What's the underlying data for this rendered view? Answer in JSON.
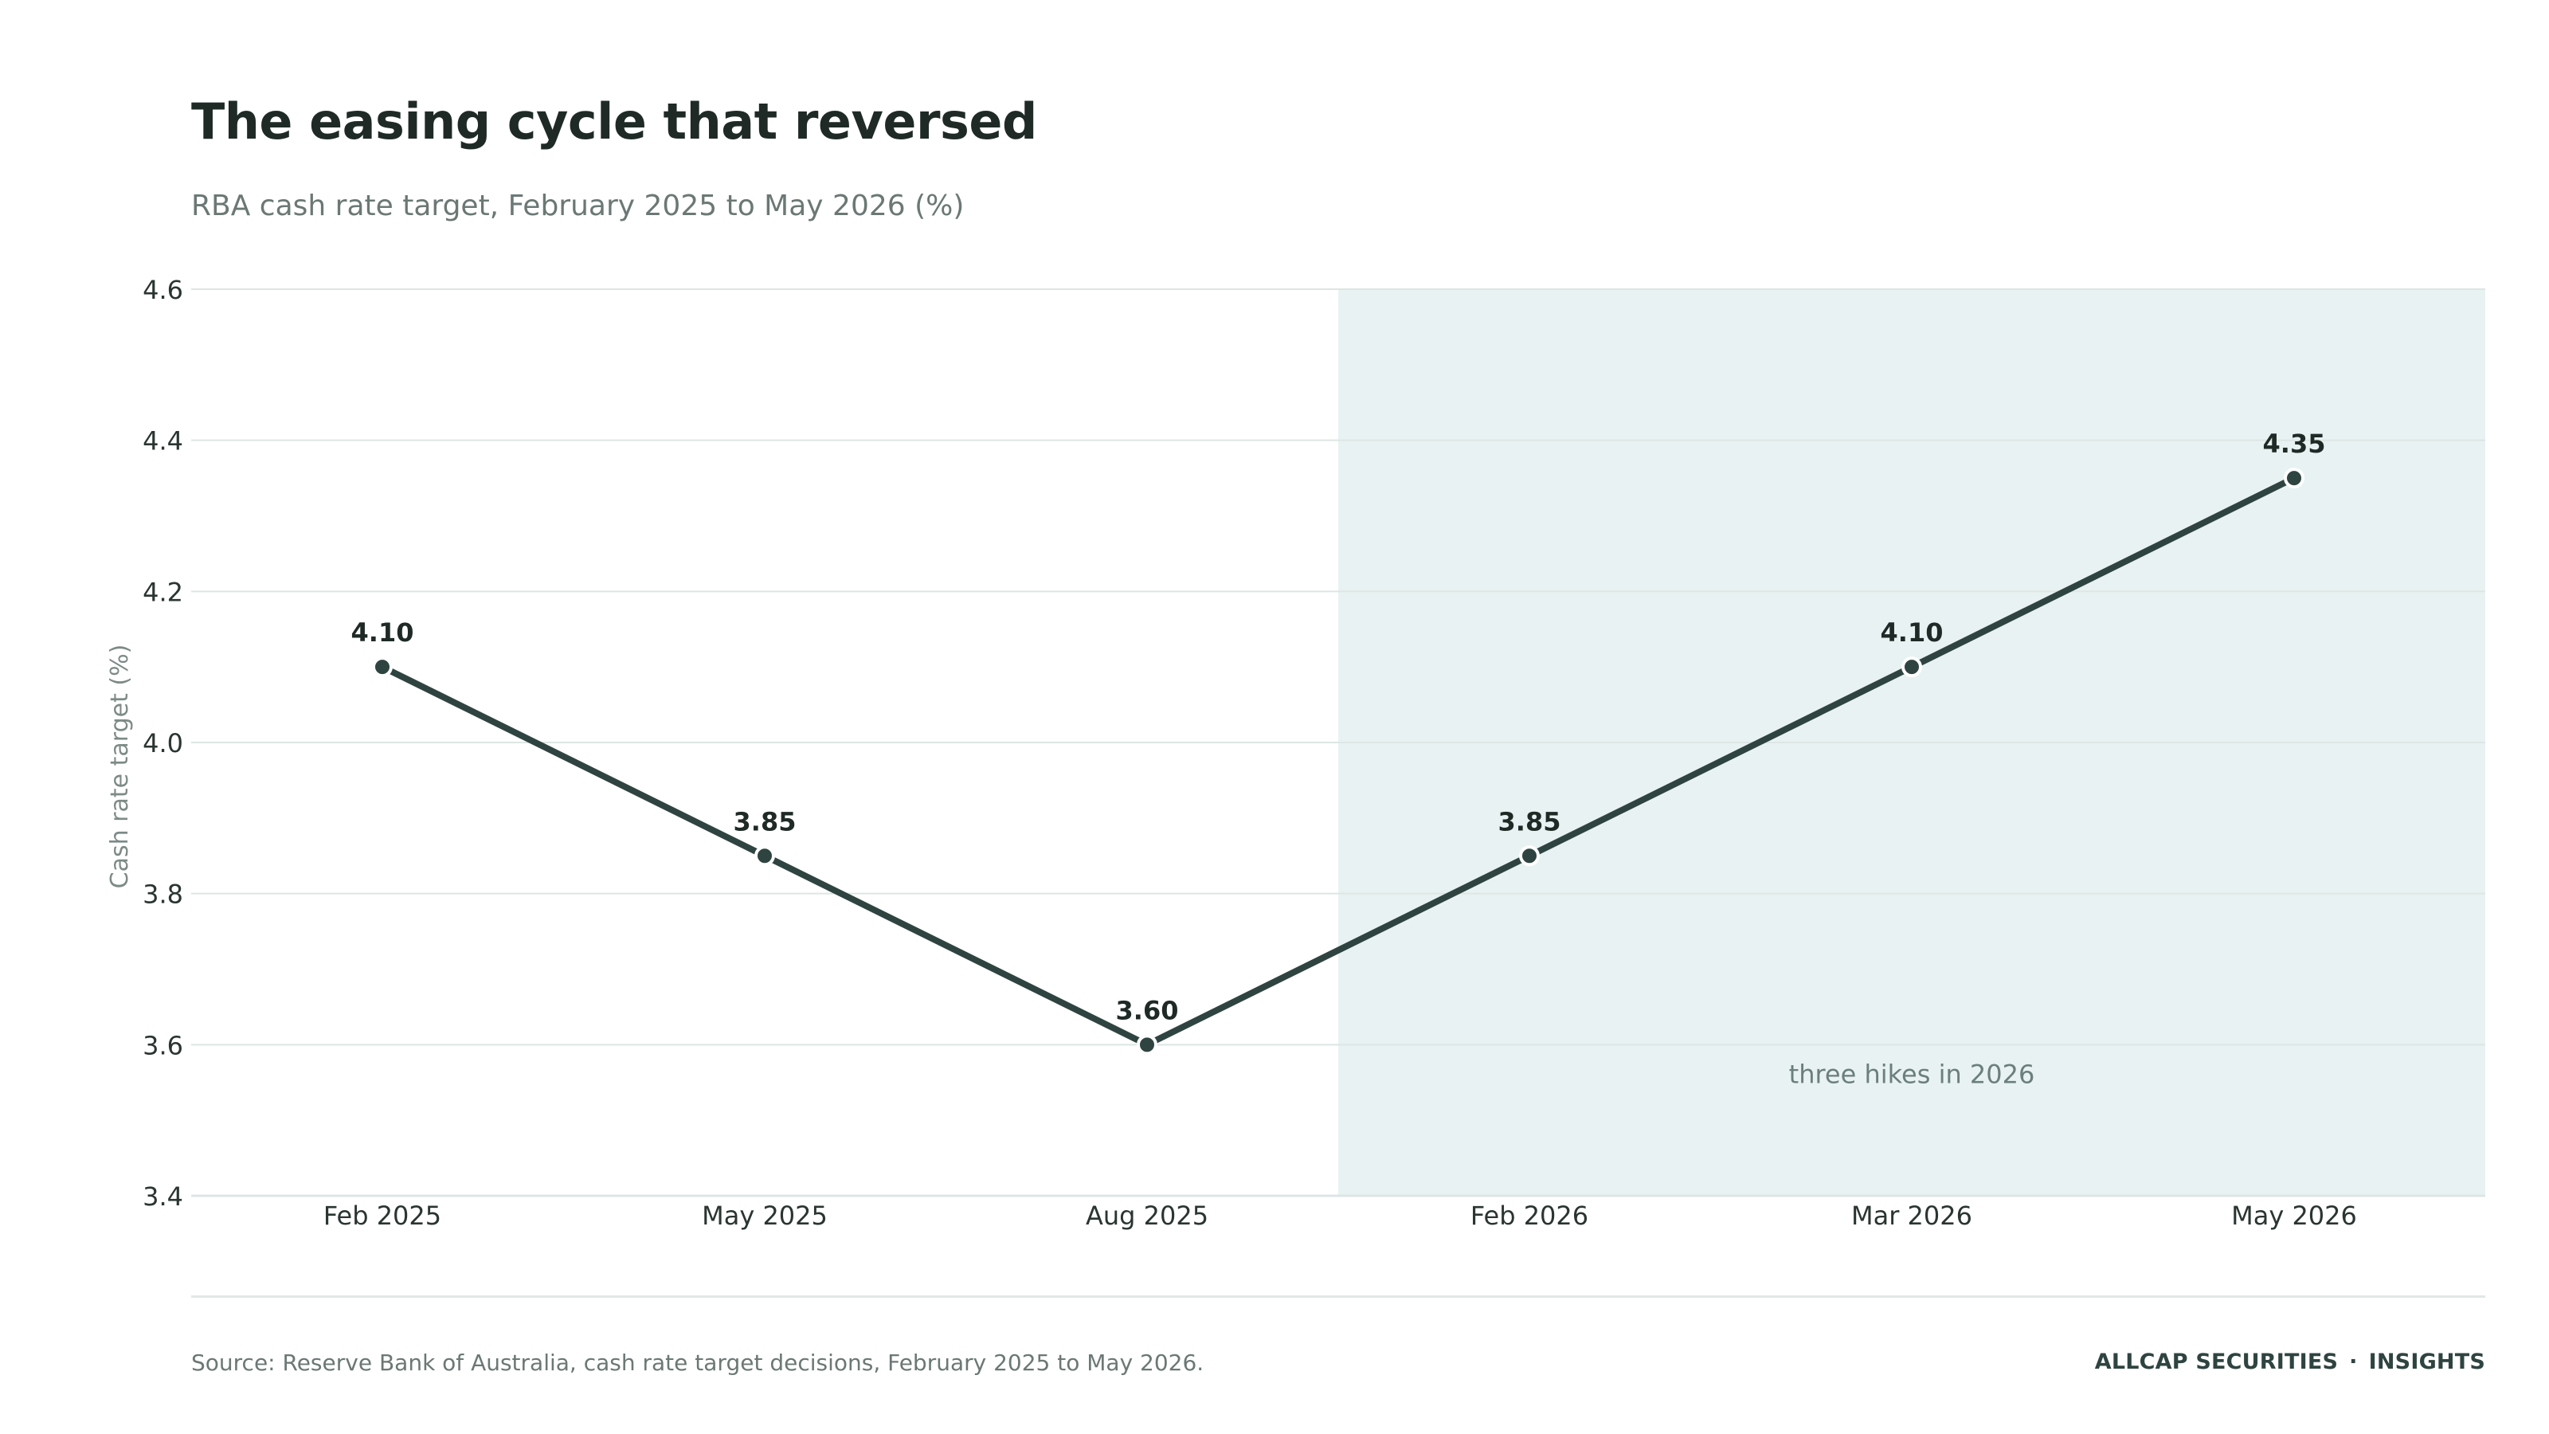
{
  "header": {
    "title": "The easing cycle that reversed",
    "subtitle": "RBA cash rate target, February 2025 to May 2026 (%)"
  },
  "chart_data": {
    "type": "line",
    "categories": [
      "Feb 2025",
      "May 2025",
      "Aug 2025",
      "Feb 2026",
      "Mar 2026",
      "May 2026"
    ],
    "series": [
      {
        "values": [
          4.1,
          3.85,
          3.6,
          3.85,
          4.1,
          4.35
        ],
        "labels": [
          "4.10",
          "3.85",
          "3.60",
          "3.85",
          "4.10",
          "4.35"
        ]
      }
    ],
    "ylabel": "Cash rate target (%)",
    "xlabel": "",
    "ylim": [
      3.4,
      4.6
    ],
    "yticks": [
      "3.4",
      "3.6",
      "3.8",
      "4.0",
      "4.2",
      "4.4",
      "4.6"
    ],
    "grid": true,
    "highlight_band": {
      "from_after_category": "Aug 2025",
      "to_category": "May 2026",
      "label": "three hikes in 2026"
    }
  },
  "colors": {
    "line": "#2f4440",
    "band": "#e8f2f2",
    "grid": "#dde6e4",
    "tick_text": "#2a3532",
    "axis_label": "#7d8a87",
    "band_label": "#6b7f7c"
  },
  "footer": {
    "source": "Source: Reserve Bank of Australia, cash rate target decisions, February 2025 to May 2026.",
    "brand": "ALLCAP SECURITIES",
    "separator": "·",
    "section": "INSIGHTS"
  }
}
